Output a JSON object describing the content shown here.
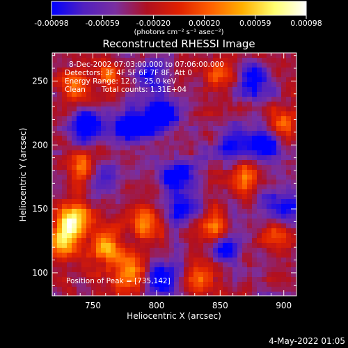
{
  "chart_data": {
    "type": "heatmap",
    "title": "Reconstructed RHESSI Image",
    "xlabel": "Heliocentric X (arcsec)",
    "ylabel": "Heliocentric Y (arcsec)",
    "xlim": [
      718,
      910
    ],
    "ylim": [
      82,
      272
    ],
    "x_ticks": [
      750,
      800,
      850,
      900
    ],
    "y_ticks": [
      100,
      150,
      200,
      250
    ],
    "x_tick_labels": [
      "750",
      "800",
      "850",
      "900"
    ],
    "y_tick_labels": [
      "100",
      "150",
      "200",
      "250"
    ],
    "colorbar": {
      "min": -0.00098,
      "max": 0.00098,
      "tick_labels": [
        "-0.00098",
        "-0.00059",
        "-0.00020",
        "0.00020",
        "0.00059",
        "0.00098"
      ],
      "units_label": "(photons cm⁻² s⁻¹ asec⁻²)",
      "colors": [
        "#0000ff",
        "#5020c0",
        "#7a2fa0",
        "#b01020",
        "#e02000",
        "#ff6000",
        "#ffb000",
        "#ffff70",
        "#ffffff"
      ]
    },
    "annotations": {
      "time_range": "8-Dec-2002 07:03:00.000 to 07:06:00.000",
      "detectors": "Detectors: 3F 4F 5F 6F 7F 8F, Att 0",
      "energy_range": "Energy Range: 12.0 - 25.0 keV",
      "algorithm": "Clean",
      "total_counts": "Total counts: 1.31E+04",
      "peak_position": "Position of Peak = [735,142]"
    },
    "bright_regions": [
      {
        "x": 735,
        "y": 142,
        "value": 0.00098
      },
      {
        "x": 725,
        "y": 125,
        "value": 0.0009
      },
      {
        "x": 760,
        "y": 120,
        "value": 0.0008
      },
      {
        "x": 780,
        "y": 100,
        "value": 0.00075
      },
      {
        "x": 745,
        "y": 180,
        "value": 0.0007
      },
      {
        "x": 790,
        "y": 140,
        "value": 0.00065
      },
      {
        "x": 735,
        "y": 245,
        "value": 0.0006
      },
      {
        "x": 760,
        "y": 255,
        "value": 0.00055
      },
      {
        "x": 845,
        "y": 135,
        "value": 0.00055
      },
      {
        "x": 850,
        "y": 255,
        "value": 0.0005
      },
      {
        "x": 900,
        "y": 215,
        "value": 0.00055
      },
      {
        "x": 870,
        "y": 175,
        "value": 0.0005
      },
      {
        "x": 895,
        "y": 130,
        "value": 0.0005
      },
      {
        "x": 835,
        "y": 95,
        "value": 0.00045
      }
    ],
    "dark_regions": [
      {
        "x": 805,
        "y": 225,
        "value": -0.00098
      },
      {
        "x": 780,
        "y": 215,
        "value": -0.0009
      },
      {
        "x": 745,
        "y": 215,
        "value": -0.0008
      },
      {
        "x": 815,
        "y": 175,
        "value": -0.0008
      },
      {
        "x": 805,
        "y": 95,
        "value": -0.0008
      },
      {
        "x": 885,
        "y": 200,
        "value": -0.0008
      },
      {
        "x": 875,
        "y": 250,
        "value": -0.0007
      },
      {
        "x": 860,
        "y": 200,
        "value": -0.0007
      },
      {
        "x": 755,
        "y": 175,
        "value": -0.0006
      },
      {
        "x": 900,
        "y": 150,
        "value": -0.0007
      },
      {
        "x": 820,
        "y": 150,
        "value": -0.0006
      },
      {
        "x": 855,
        "y": 120,
        "value": -0.0006
      },
      {
        "x": 795,
        "y": 255,
        "value": -0.0006
      }
    ]
  },
  "footer": {
    "date": "4-May-2022 01:05"
  }
}
